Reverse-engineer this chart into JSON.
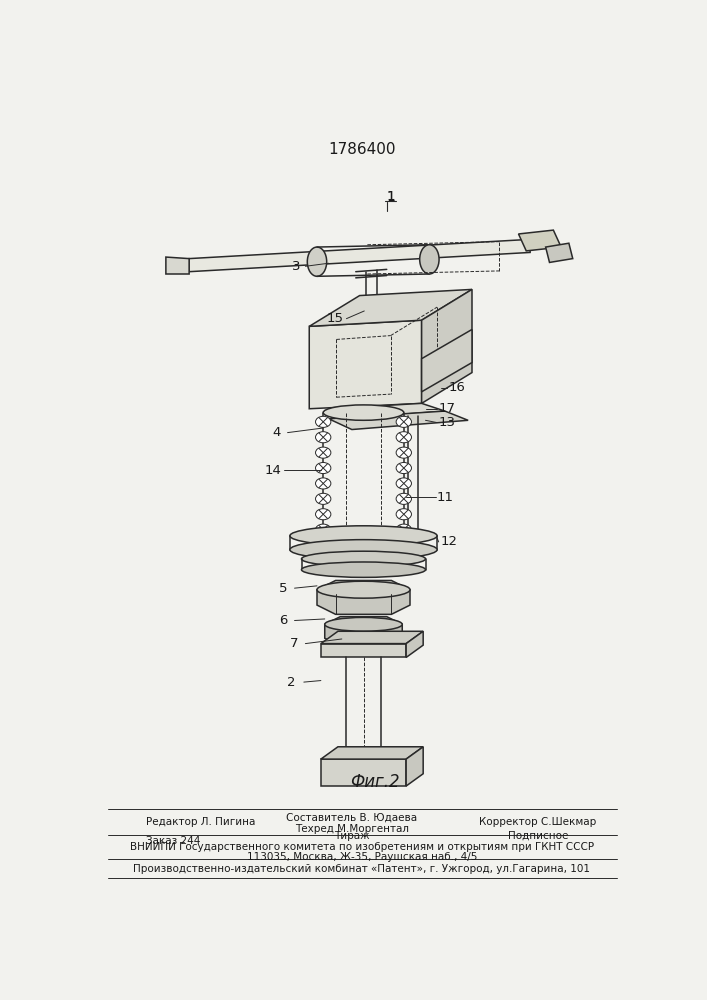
{
  "patent_number": "1786400",
  "fig_label": "Фиг.2",
  "background_color": "#f2f2ee",
  "line_color": "#2a2a2a",
  "text_color": "#1a1a1a",
  "editor_line": "Редактор Л. Пигина",
  "composer_line1": "Составитель В. Юдаева",
  "composer_line2": "Техред М.Моргентал",
  "corrector_line": "Корректор С.Шекмар",
  "order_line": "Заказ 244",
  "tirazh_label": "Тираж",
  "podpisnoe_label": "Подписное",
  "vniiipi_line1": "ВНИИПИ Государственного комитета по изобретениям и открытиям при ГКНТ СССР",
  "vniiipi_line2": "113035, Москва, Ж-35, Раушская наб., 4/5",
  "production_line": "Производственно-издательский комбинат «Патент», г. Ужгород, ул.Гагарина, 101"
}
